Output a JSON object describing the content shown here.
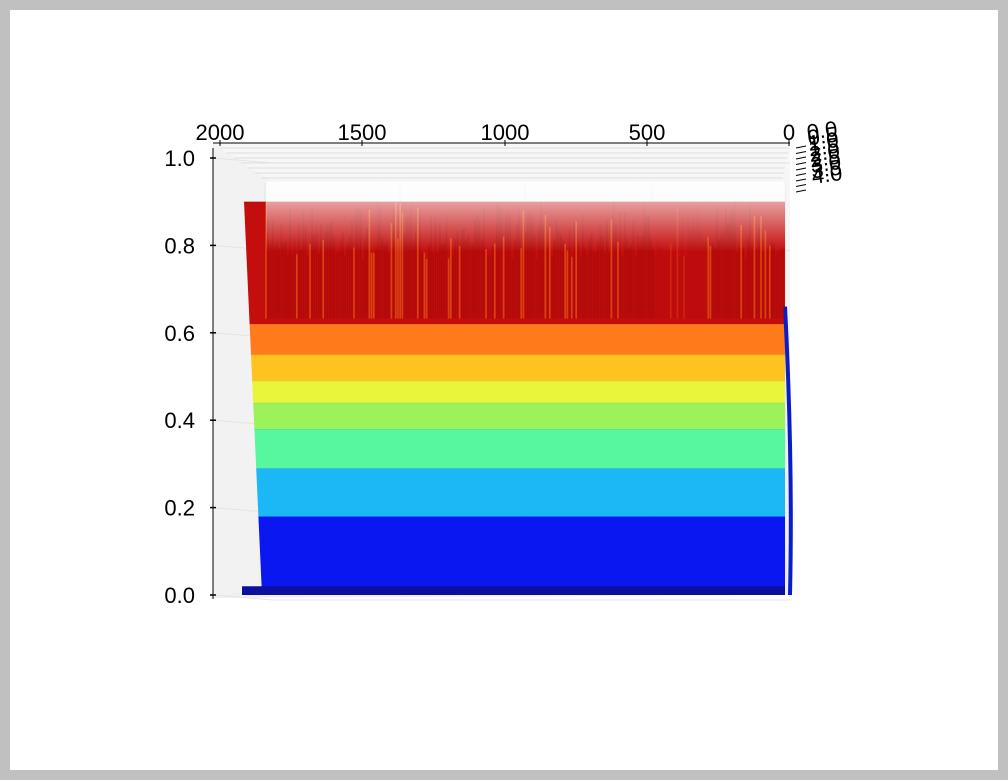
{
  "chart_data": {
    "type": "surface3d",
    "colormap": "jet",
    "x_axis": {
      "ticks": [
        "2000",
        "1500",
        "1000",
        "500",
        "0"
      ],
      "range": [
        0,
        2000
      ]
    },
    "y_axis": {
      "ticks": [
        "0.0",
        "0.5",
        "1.0",
        "1.5",
        "2.0",
        "2.5",
        "3.0",
        "3.5",
        "4.0"
      ]
    },
    "z_axis": {
      "ticks": [
        "0.0",
        "0.2",
        "0.4",
        "0.6",
        "0.8",
        "1.0"
      ],
      "range": [
        0,
        1.0
      ]
    },
    "color_bands": [
      {
        "from": 0.0,
        "to": 0.18,
        "color": "#0a17f0"
      },
      {
        "from": 0.18,
        "to": 0.29,
        "color": "#1bb8f5"
      },
      {
        "from": 0.29,
        "to": 0.38,
        "color": "#57f79f"
      },
      {
        "from": 0.38,
        "to": 0.44,
        "color": "#9cf25a"
      },
      {
        "from": 0.44,
        "to": 0.49,
        "color": "#e8f53a"
      },
      {
        "from": 0.49,
        "to": 0.55,
        "color": "#ffc21f"
      },
      {
        "from": 0.55,
        "to": 0.62,
        "color": "#ff7a1a"
      },
      {
        "from": 0.62,
        "to": 0.9,
        "color": "#c40d0d"
      }
    ],
    "noisy_top": {
      "min": 0.66,
      "max": 0.9
    },
    "grid": true
  }
}
